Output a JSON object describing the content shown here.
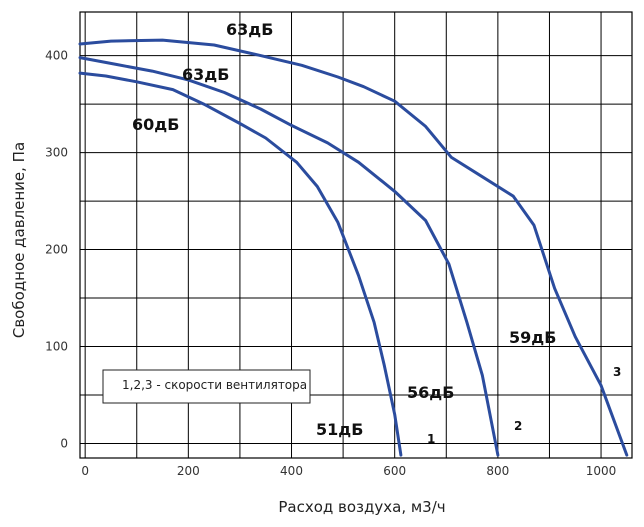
{
  "chart_data": {
    "type": "line",
    "xlabel": "Расход воздуха, м3/ч",
    "ylabel": "Свободное давление, Па",
    "xlim": [
      -10,
      1060
    ],
    "ylim": [
      -15,
      445
    ],
    "x_ticks": [
      0,
      200,
      400,
      600,
      800,
      1000
    ],
    "y_ticks": [
      0,
      100,
      200,
      300,
      400
    ],
    "x_tick_labels": [
      "0",
      "200",
      "400",
      "600",
      "800",
      "1000"
    ],
    "y_tick_labels": [
      "0",
      "100",
      "200",
      "300",
      "400"
    ],
    "grid": true,
    "x_grid": [
      0,
      100,
      200,
      300,
      400,
      500,
      600,
      700,
      800,
      900,
      1000
    ],
    "y_grid": [
      0,
      50,
      100,
      150,
      200,
      250,
      300,
      350,
      400
    ],
    "series": [
      {
        "name": "1",
        "noise_top": "60дБ",
        "noise_bottom": "51дБ",
        "x": [
          -10,
          40,
          100,
          170,
          230,
          300,
          350,
          410,
          450,
          490,
          530,
          560,
          580,
          600,
          612
        ],
        "y": [
          382,
          379,
          373,
          365,
          350,
          330,
          315,
          290,
          265,
          228,
          173,
          125,
          80,
          30,
          -12
        ]
      },
      {
        "name": "2",
        "noise_top": "63дБ",
        "noise_bottom": "56дБ",
        "x": [
          -10,
          60,
          130,
          200,
          270,
          340,
          400,
          470,
          530,
          600,
          660,
          705,
          740,
          770,
          800
        ],
        "y": [
          398,
          391,
          384,
          375,
          362,
          345,
          328,
          310,
          290,
          260,
          230,
          185,
          125,
          70,
          -12
        ]
      },
      {
        "name": "3",
        "noise_top": "63дБ",
        "noise_bottom": "59дБ",
        "x": [
          -10,
          50,
          150,
          250,
          340,
          420,
          490,
          540,
          600,
          660,
          710,
          770,
          830,
          870,
          910,
          950,
          1000,
          1050
        ],
        "y": [
          412,
          415,
          416,
          411,
          400,
          390,
          378,
          368,
          353,
          327,
          295,
          275,
          255,
          225,
          160,
          110,
          60,
          -12
        ]
      }
    ],
    "annotation": "1,2,3 - скорости вентилятора",
    "colors": {
      "line": "#2b4c9e",
      "grid": "#000000",
      "background": "#ffffff",
      "text": "#111111"
    }
  }
}
